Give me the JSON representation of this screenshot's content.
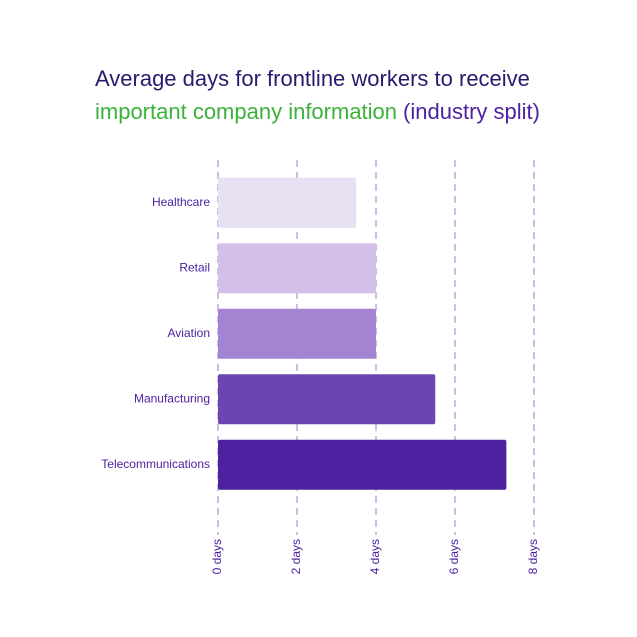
{
  "chart_data": {
    "type": "bar",
    "orientation": "horizontal",
    "title": "Average days for frontline workers to receive",
    "title_highlight": "important company information",
    "title_suffix": "(industry split)",
    "categories": [
      "Healthcare",
      "Retail",
      "Aviation",
      "Manufacturing",
      "Telecommunications"
    ],
    "values": [
      3.5,
      4,
      4,
      5.5,
      7.3
    ],
    "colors": [
      "#e8e0f3",
      "#d3c0e8",
      "#a384d3",
      "#6b45b0",
      "#4c22a0"
    ],
    "xlim": [
      0,
      8
    ],
    "xticks": [
      {
        "value": 0,
        "label": "0 days"
      },
      {
        "value": 2,
        "label": "2 days"
      },
      {
        "value": 4,
        "label": "4 days"
      },
      {
        "value": 6,
        "label": "6 days"
      },
      {
        "value": 8,
        "label": "8 days"
      }
    ],
    "grid": true
  }
}
